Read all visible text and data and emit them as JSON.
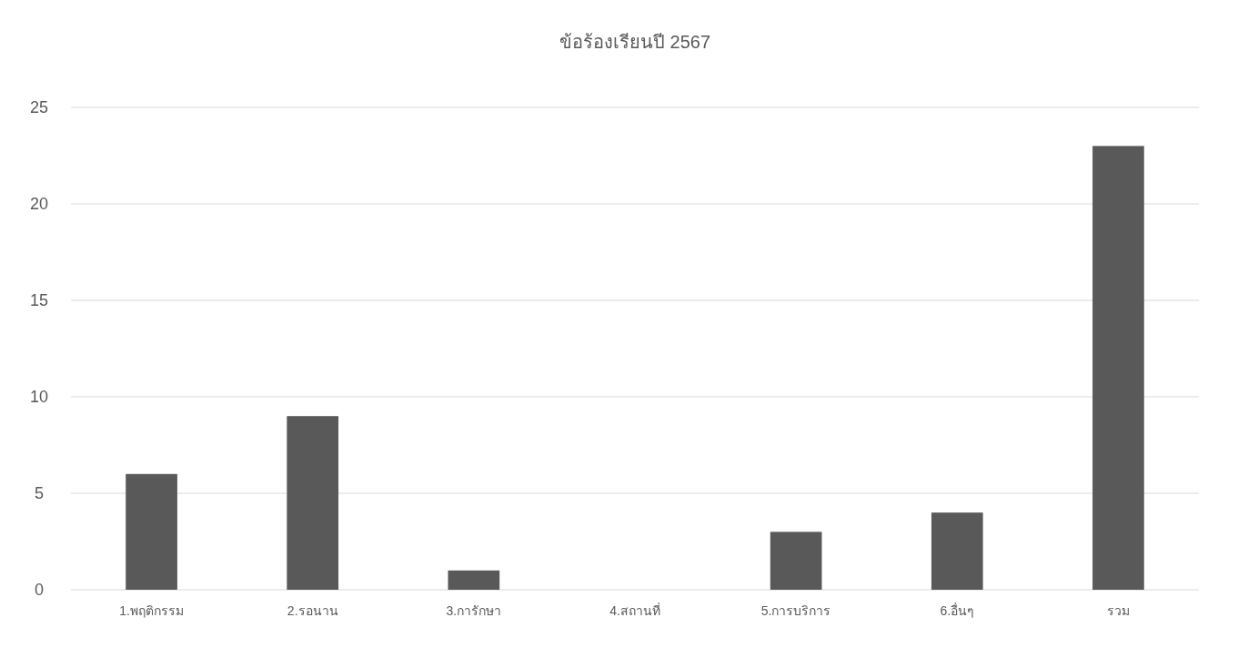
{
  "chart_data": {
    "type": "bar",
    "title": "ข้อร้องเรียนปี 2567",
    "categories": [
      "1.พฤติกรรม",
      "2.รอนาน",
      "3.การักษา",
      "4.สถานที่",
      "5.การบริการ",
      "6.อื่นๆ",
      "รวม"
    ],
    "values": [
      6,
      9,
      1,
      0,
      3,
      4,
      23
    ],
    "color": "#595959",
    "ylim": [
      0,
      25
    ],
    "yticks": [
      0,
      5,
      10,
      15,
      20,
      25
    ],
    "grid": "y"
  }
}
